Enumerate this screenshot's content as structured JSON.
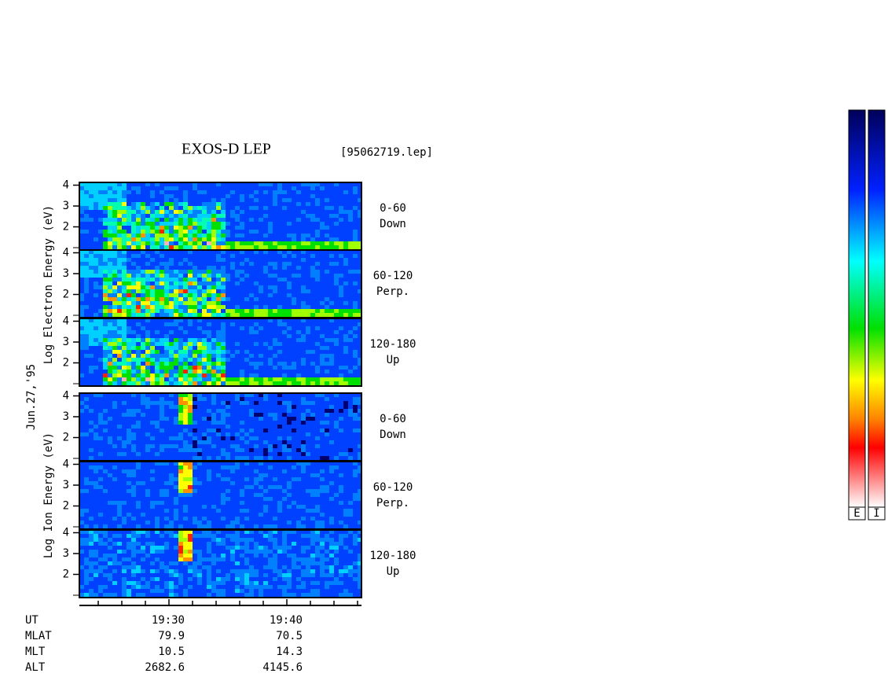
{
  "title": "EXOS-D LEP",
  "file": "[95062719.lep]",
  "date": "Jun.27,'95",
  "electron_axis_label": "Log Electron Energy (eV)",
  "ion_axis_label": "Log Ion Energy (eV)",
  "panels": [
    {
      "yticks": [
        4,
        3,
        2
      ],
      "label": [
        "0-60",
        "Down"
      ]
    },
    {
      "yticks": [
        4,
        3,
        2
      ],
      "label": [
        "60-120",
        "Perp."
      ]
    },
    {
      "yticks": [
        4,
        3,
        2
      ],
      "label": [
        "120-180",
        "Up"
      ]
    },
    {
      "yticks": [
        4,
        3,
        2
      ],
      "label": [
        "0-60",
        "Down"
      ]
    },
    {
      "yticks": [
        4,
        3,
        2
      ],
      "label": [
        "60-120",
        "Perp."
      ]
    },
    {
      "yticks": [
        4,
        3,
        2
      ],
      "label": [
        "120-180",
        "Up"
      ]
    }
  ],
  "rows": [
    {
      "name": "UT",
      "values": [
        "19:30",
        "19:40"
      ]
    },
    {
      "name": "MLAT",
      "values": [
        "79.9",
        "70.5"
      ]
    },
    {
      "name": "MLT",
      "values": [
        "10.5",
        "14.3"
      ]
    },
    {
      "name": "ALT",
      "values": [
        "2682.6",
        "4145.6"
      ]
    }
  ],
  "colorbars": [
    "E",
    "I"
  ]
}
